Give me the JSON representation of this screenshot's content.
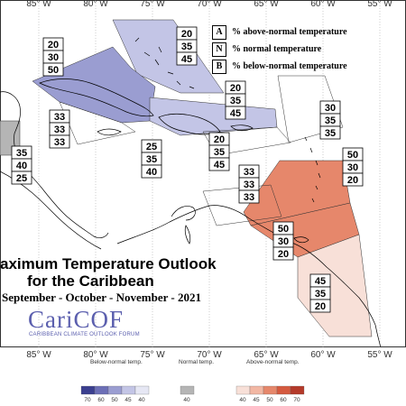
{
  "title": {
    "line1": "aximum Temperature Outlook",
    "line2": "for the Caribbean",
    "line3": "September - October - November - 2021"
  },
  "logo": {
    "name": "CariCOF",
    "subtitle": "CARIBBEAN CLIMATE OUTLOOK FORUM"
  },
  "legend": [
    {
      "key": "A",
      "text": "% above-normal temperature"
    },
    {
      "key": "N",
      "text": "% normal temperature"
    },
    {
      "key": "B",
      "text": "% below-normal temperature"
    }
  ],
  "longitudes_top": [
    "85° W",
    "80° W",
    "75° W",
    "70° W",
    "65° W",
    "60° W",
    "55° W"
  ],
  "longitudes_bottom": [
    "85° W",
    "80° W",
    "75° W",
    "70° W",
    "65° W",
    "60° W",
    "55° W"
  ],
  "probabilities": [
    {
      "A": "20",
      "N": "30",
      "B": "50"
    },
    {
      "A": "20",
      "N": "35",
      "B": "45"
    },
    {
      "A": "33",
      "N": "33",
      "B": "33"
    },
    {
      "A": "20",
      "N": "35",
      "B": "45"
    },
    {
      "A": "25",
      "N": "35",
      "B": "40"
    },
    {
      "A": "20",
      "N": "35",
      "B": "45"
    },
    {
      "A": "30",
      "N": "35",
      "B": "35"
    },
    {
      "A": "35",
      "N": "40",
      "B": "25"
    },
    {
      "A": "33",
      "N": "33",
      "B": "33"
    },
    {
      "A": "50",
      "N": "30",
      "B": "20"
    },
    {
      "A": "50",
      "N": "30",
      "B": "20"
    },
    {
      "A": "45",
      "N": "35",
      "B": "20"
    }
  ],
  "colorbar": {
    "below_title": "Below-normal temp.",
    "normal_title": "Normal temp.",
    "above_title": "Above-normal temp.",
    "below_labels": [
      "70",
      "60",
      "50",
      "45",
      "40"
    ],
    "normal_labels": [
      "40"
    ],
    "above_labels": [
      "40",
      "45",
      "50",
      "60",
      "70"
    ],
    "below_colors": [
      "#3b3f8f",
      "#6c6fb6",
      "#9a9dd1",
      "#c3c5e6",
      "#e6e7f4"
    ],
    "normal_color": "#b5b5b5",
    "above_colors": [
      "#f8e0d8",
      "#f2b7a3",
      "#e6876b",
      "#d55a3f",
      "#b43a2a"
    ]
  }
}
